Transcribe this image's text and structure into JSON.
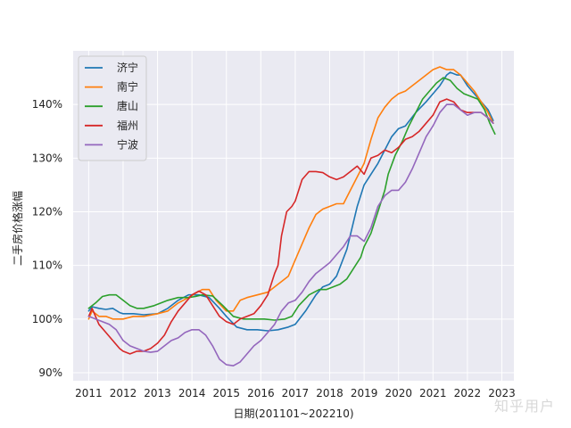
{
  "watermark": "知乎用户",
  "chart_data": {
    "type": "line",
    "title": "",
    "xlabel": "日期(201101~202210)",
    "ylabel": "二手房价格涨幅",
    "xlim": [
      2010.55,
      2023.35
    ],
    "ylim": [
      88.5,
      150
    ],
    "xticks": [
      2011,
      2012,
      2013,
      2014,
      2015,
      2016,
      2017,
      2018,
      2019,
      2020,
      2021,
      2022,
      2023
    ],
    "xtick_labels": [
      "2011",
      "2012",
      "2013",
      "2014",
      "2015",
      "2016",
      "2017",
      "2018",
      "2019",
      "2020",
      "2021",
      "2022",
      "2023"
    ],
    "yticks": [
      90,
      100,
      110,
      120,
      130,
      140
    ],
    "ytick_labels": [
      "90%",
      "100%",
      "110%",
      "120%",
      "130%",
      "140%"
    ],
    "grid": true,
    "background": "#eaeaf2",
    "legend_position": "top-left",
    "series": [
      {
        "name": "济宁",
        "color": "#1f77b4",
        "x": [
          2011.0,
          2011.1,
          2011.3,
          2011.5,
          2011.7,
          2011.9,
          2012.0,
          2012.3,
          2012.6,
          2013.0,
          2013.3,
          2013.6,
          2013.9,
          2014.2,
          2014.5,
          2014.8,
          2015.0,
          2015.3,
          2015.6,
          2015.9,
          2016.2,
          2016.5,
          2016.8,
          2017.0,
          2017.3,
          2017.6,
          2017.8,
          2018.0,
          2018.2,
          2018.5,
          2018.8,
          2019.0,
          2019.2,
          2019.4,
          2019.6,
          2019.8,
          2020.0,
          2020.2,
          2020.5,
          2020.8,
          2021.0,
          2021.2,
          2021.4,
          2021.5,
          2021.7,
          2021.8,
          2022.0,
          2022.2,
          2022.4,
          2022.6,
          2022.75
        ],
        "y": [
          101.5,
          102.3,
          102.0,
          101.8,
          102.0,
          101.2,
          101.0,
          101.0,
          100.8,
          101.0,
          102.0,
          103.5,
          104.5,
          104.5,
          104.0,
          102.0,
          100.5,
          98.5,
          98.0,
          98.0,
          97.8,
          98.0,
          98.5,
          99.0,
          101.5,
          104.5,
          106.0,
          106.5,
          108.0,
          113.0,
          121.0,
          125.0,
          127.0,
          129.0,
          131.5,
          134.0,
          135.5,
          136.0,
          138.5,
          140.5,
          142.0,
          143.5,
          145.5,
          146.0,
          145.5,
          145.5,
          143.5,
          142.0,
          140.5,
          139.0,
          137.0
        ]
      },
      {
        "name": "南宁",
        "color": "#ff7f0e",
        "x": [
          2011.0,
          2011.1,
          2011.3,
          2011.5,
          2011.7,
          2011.9,
          2012.0,
          2012.3,
          2012.6,
          2013.0,
          2013.3,
          2013.6,
          2013.9,
          2014.1,
          2014.3,
          2014.5,
          2014.7,
          2015.0,
          2015.2,
          2015.4,
          2015.6,
          2015.9,
          2016.2,
          2016.4,
          2016.6,
          2016.8,
          2017.0,
          2017.2,
          2017.4,
          2017.6,
          2017.8,
          2018.0,
          2018.2,
          2018.4,
          2018.6,
          2018.8,
          2019.0,
          2019.2,
          2019.4,
          2019.6,
          2019.8,
          2020.0,
          2020.2,
          2020.4,
          2020.6,
          2020.8,
          2021.0,
          2021.2,
          2021.4,
          2021.6,
          2021.8,
          2022.0,
          2022.2,
          2022.4,
          2022.6,
          2022.75
        ],
        "y": [
          100.0,
          101.5,
          100.5,
          100.5,
          100.0,
          100.0,
          100.0,
          100.5,
          100.5,
          101.0,
          101.5,
          103.0,
          104.0,
          104.8,
          105.5,
          105.5,
          103.5,
          101.5,
          101.5,
          103.5,
          104.0,
          104.5,
          105.0,
          106.0,
          107.0,
          108.0,
          111.0,
          114.0,
          117.0,
          119.5,
          120.5,
          121.0,
          121.5,
          121.5,
          124.0,
          126.5,
          129.0,
          133.5,
          137.5,
          139.5,
          141.0,
          142.0,
          142.5,
          143.5,
          144.5,
          145.5,
          146.5,
          147.0,
          146.5,
          146.5,
          145.5,
          144.0,
          142.5,
          140.5,
          138.5,
          136.5
        ]
      },
      {
        "name": "唐山",
        "color": "#2ca02c",
        "x": [
          2011.0,
          2011.2,
          2011.4,
          2011.6,
          2011.8,
          2012.0,
          2012.2,
          2012.4,
          2012.6,
          2012.9,
          2013.1,
          2013.3,
          2013.6,
          2013.9,
          2014.1,
          2014.3,
          2014.6,
          2014.9,
          2015.2,
          2015.5,
          2015.8,
          2016.1,
          2016.4,
          2016.7,
          2016.9,
          2017.1,
          2017.4,
          2017.7,
          2017.9,
          2018.1,
          2018.3,
          2018.5,
          2018.7,
          2018.9,
          2019.0,
          2019.2,
          2019.4,
          2019.6,
          2019.7,
          2019.9,
          2020.1,
          2020.3,
          2020.5,
          2020.7,
          2020.9,
          2021.1,
          2021.3,
          2021.5,
          2021.7,
          2021.9,
          2022.1,
          2022.3,
          2022.5,
          2022.65,
          2022.8
        ],
        "y": [
          102.0,
          103.0,
          104.2,
          104.5,
          104.5,
          103.5,
          102.5,
          102.0,
          102.0,
          102.5,
          103.0,
          103.5,
          104.0,
          104.0,
          104.2,
          104.5,
          104.3,
          102.5,
          100.5,
          100.0,
          100.0,
          100.0,
          99.8,
          100.0,
          100.5,
          102.5,
          104.5,
          105.5,
          105.5,
          106.0,
          106.5,
          107.5,
          109.5,
          111.5,
          113.5,
          116.0,
          120.0,
          124.0,
          127.0,
          130.5,
          133.0,
          136.0,
          138.5,
          141.0,
          142.5,
          144.0,
          145.0,
          144.5,
          143.0,
          142.0,
          141.5,
          141.0,
          139.0,
          136.5,
          134.5
        ]
      },
      {
        "name": "福州",
        "color": "#d62728",
        "x": [
          2011.0,
          2011.1,
          2011.3,
          2011.5,
          2011.7,
          2011.9,
          2012.0,
          2012.2,
          2012.4,
          2012.6,
          2012.8,
          2013.0,
          2013.2,
          2013.4,
          2013.6,
          2013.8,
          2014.0,
          2014.2,
          2014.4,
          2014.6,
          2014.8,
          2015.0,
          2015.2,
          2015.4,
          2015.6,
          2015.8,
          2016.0,
          2016.2,
          2016.4,
          2016.5,
          2016.6,
          2016.75,
          2016.9,
          2017.0,
          2017.2,
          2017.4,
          2017.6,
          2017.8,
          2018.0,
          2018.2,
          2018.4,
          2018.6,
          2018.8,
          2019.0,
          2019.2,
          2019.4,
          2019.6,
          2019.8,
          2020.0,
          2020.2,
          2020.4,
          2020.6,
          2020.8,
          2021.0,
          2021.2,
          2021.4,
          2021.6,
          2021.8,
          2022.0,
          2022.2,
          2022.4,
          2022.6,
          2022.75
        ],
        "y": [
          100.5,
          102.0,
          99.0,
          97.5,
          96.0,
          94.5,
          94.0,
          93.5,
          94.0,
          94.0,
          94.5,
          95.5,
          97.0,
          99.5,
          101.5,
          103.0,
          104.5,
          105.2,
          104.5,
          102.5,
          100.5,
          99.5,
          99.0,
          100.0,
          100.5,
          101.0,
          102.5,
          104.5,
          108.5,
          110.0,
          115.5,
          120.0,
          121.0,
          122.0,
          126.0,
          127.5,
          127.5,
          127.3,
          126.5,
          126.0,
          126.5,
          127.5,
          128.5,
          127.0,
          130.0,
          130.5,
          131.5,
          131.0,
          132.0,
          133.5,
          134.0,
          135.0,
          136.5,
          138.0,
          140.5,
          141.0,
          140.5,
          139.0,
          138.5,
          138.5,
          138.5,
          137.5,
          136.5
        ]
      },
      {
        "name": "宁波",
        "color": "#9467bd",
        "x": [
          2011.0,
          2011.2,
          2011.4,
          2011.6,
          2011.8,
          2012.0,
          2012.2,
          2012.4,
          2012.6,
          2012.8,
          2013.0,
          2013.2,
          2013.4,
          2013.6,
          2013.8,
          2014.0,
          2014.2,
          2014.4,
          2014.6,
          2014.8,
          2015.0,
          2015.2,
          2015.4,
          2015.6,
          2015.8,
          2016.0,
          2016.2,
          2016.4,
          2016.6,
          2016.8,
          2017.0,
          2017.2,
          2017.4,
          2017.6,
          2017.8,
          2018.0,
          2018.2,
          2018.4,
          2018.6,
          2018.8,
          2019.0,
          2019.2,
          2019.4,
          2019.6,
          2019.8,
          2020.0,
          2020.2,
          2020.4,
          2020.6,
          2020.8,
          2021.0,
          2021.2,
          2021.4,
          2021.6,
          2021.8,
          2022.0,
          2022.2,
          2022.4,
          2022.6,
          2022.75
        ],
        "y": [
          100.5,
          100.0,
          99.5,
          99.0,
          98.0,
          96.0,
          95.0,
          94.5,
          94.0,
          93.8,
          94.0,
          95.0,
          96.0,
          96.5,
          97.5,
          98.0,
          98.0,
          97.0,
          95.0,
          92.5,
          91.5,
          91.3,
          92.0,
          93.5,
          95.0,
          96.0,
          97.5,
          99.0,
          101.5,
          103.0,
          103.5,
          105.0,
          107.0,
          108.5,
          109.5,
          110.5,
          112.0,
          113.5,
          115.5,
          115.5,
          114.5,
          117.0,
          121.0,
          123.0,
          124.0,
          124.0,
          125.5,
          128.0,
          131.0,
          134.0,
          136.0,
          138.5,
          140.0,
          140.0,
          139.0,
          138.0,
          138.5,
          138.5,
          137.5,
          136.5
        ]
      }
    ]
  }
}
